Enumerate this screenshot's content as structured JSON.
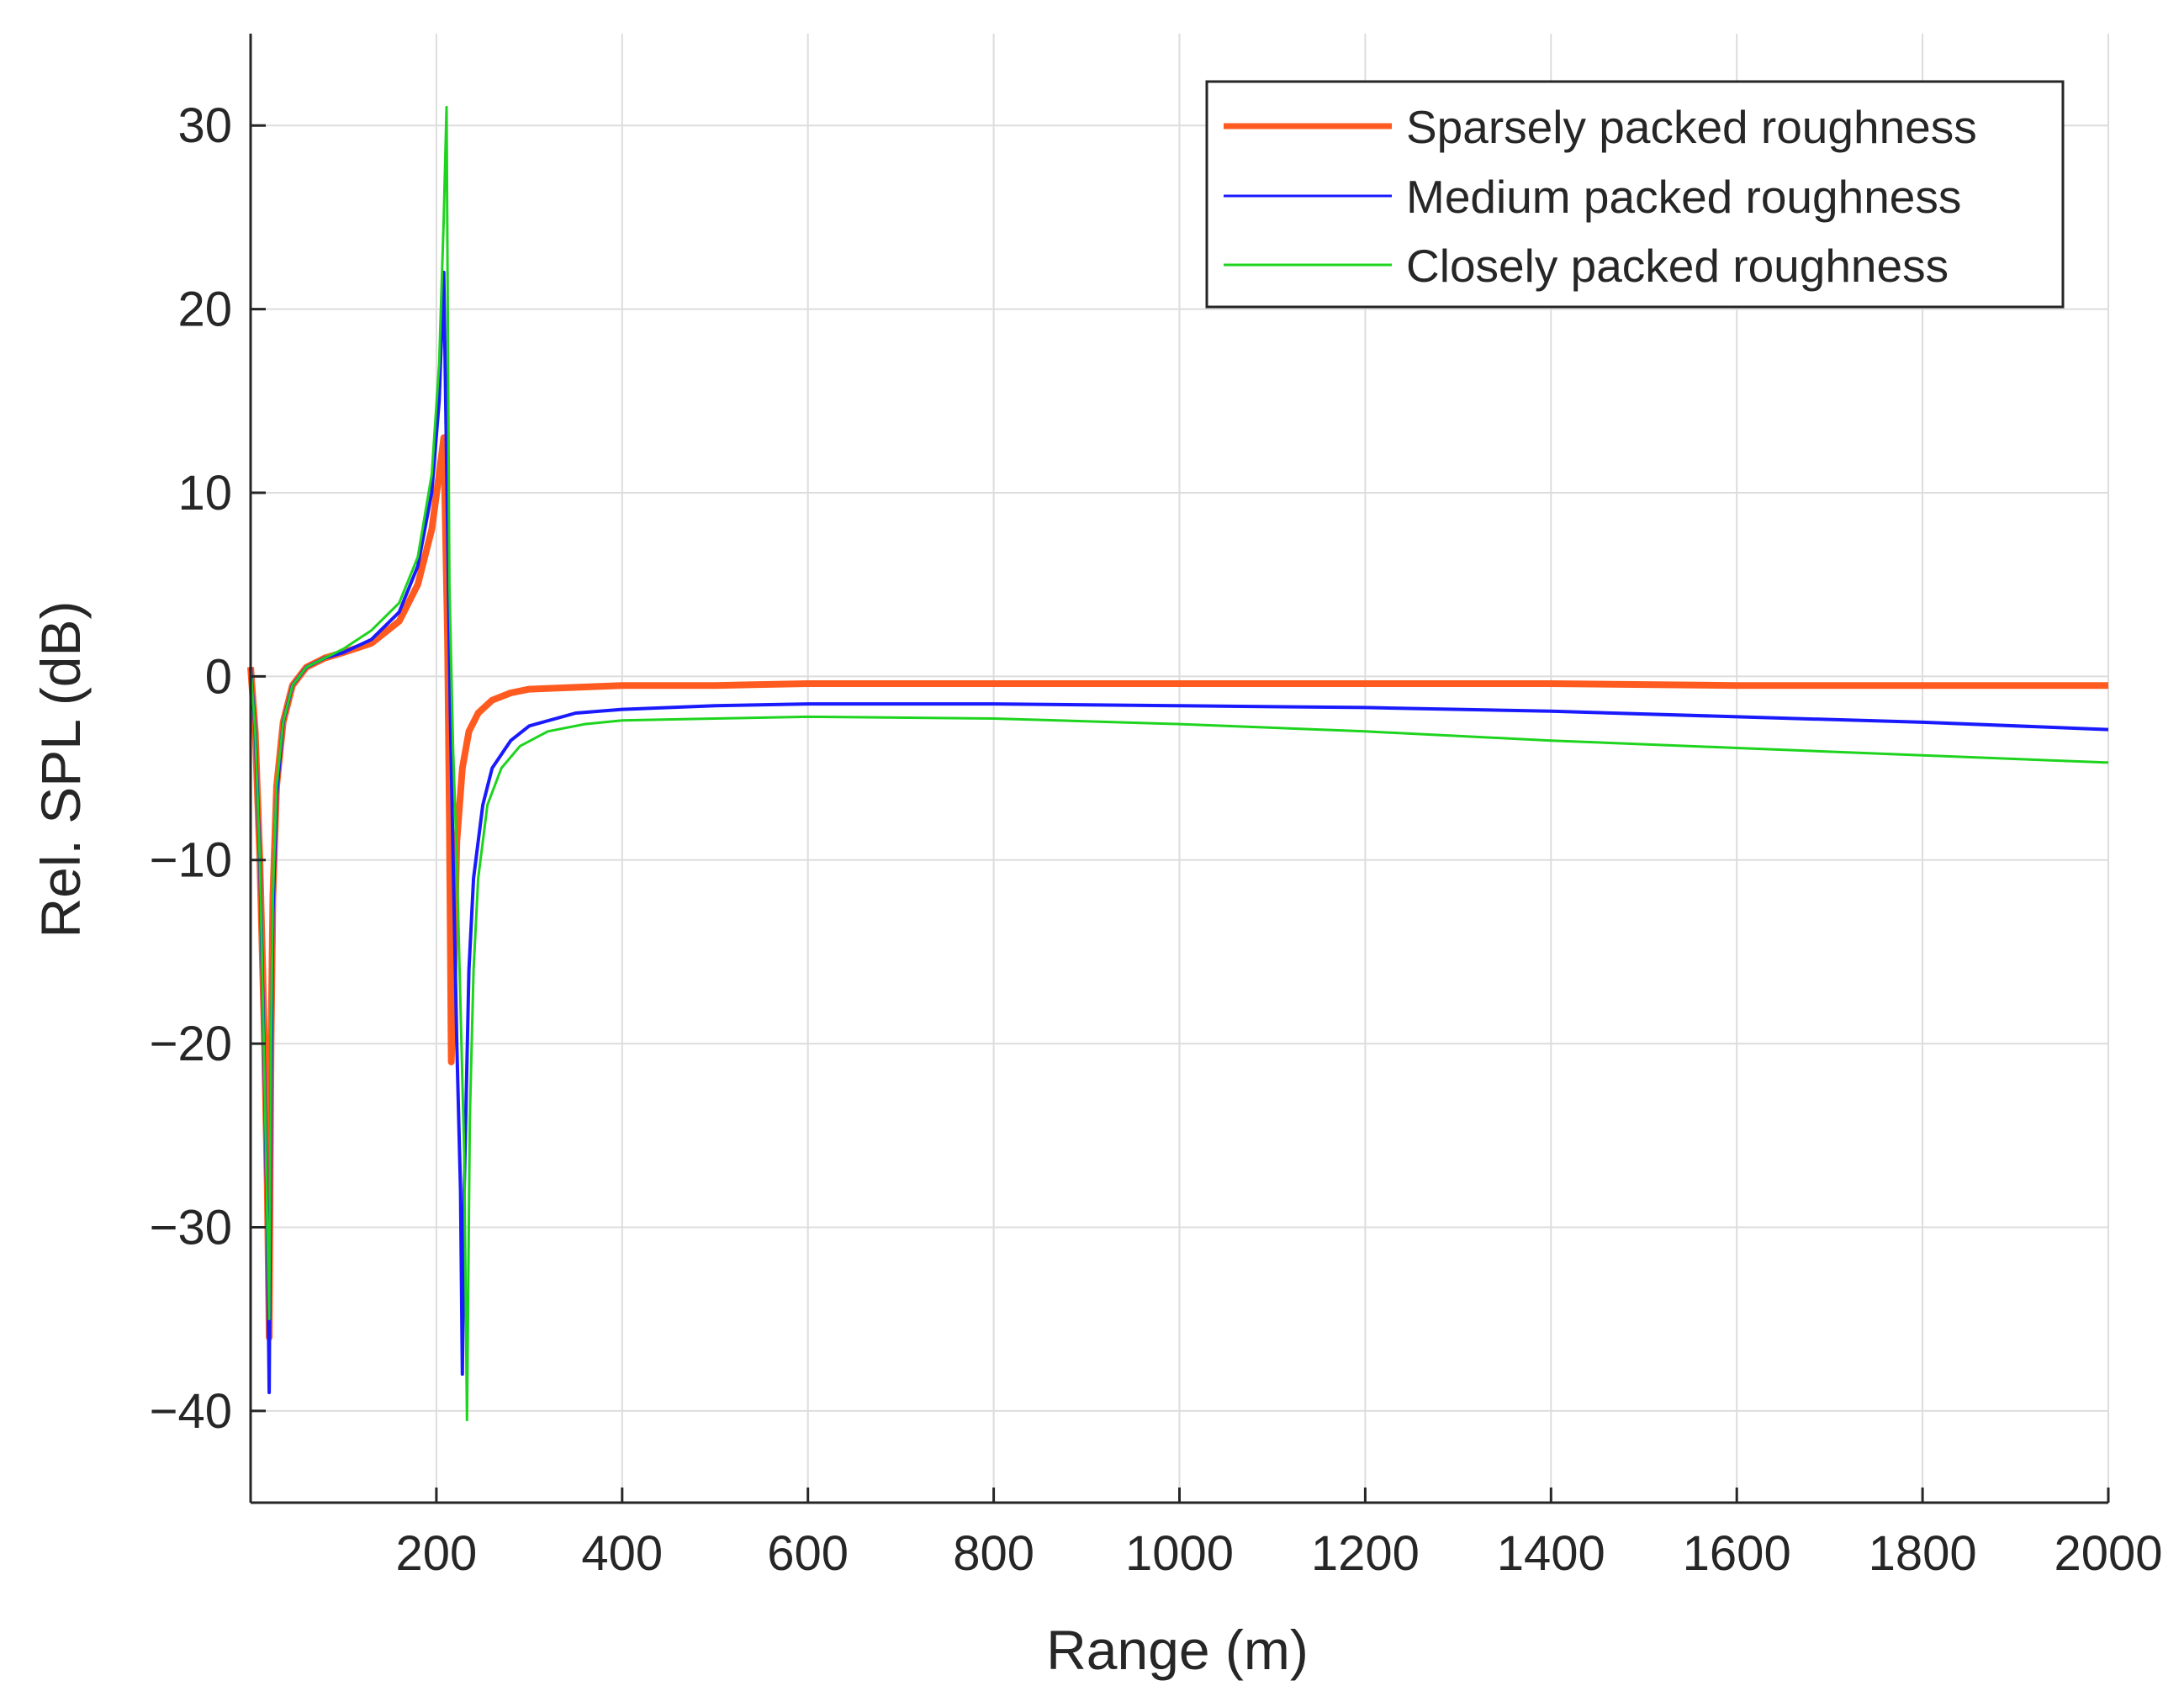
{
  "chart_data": {
    "type": "line",
    "title": "",
    "xlabel": "Range (m)",
    "ylabel": "Rel. SPL (dB)",
    "xlim": [
      0,
      2000
    ],
    "ylim": [
      -45,
      35
    ],
    "xticks": [
      200,
      400,
      600,
      800,
      1000,
      1200,
      1400,
      1600,
      1800,
      2000
    ],
    "xtick_labels": [
      "200",
      "400",
      "600",
      "800",
      "1000",
      "1200",
      "1400",
      "1600",
      "1800",
      "2000"
    ],
    "yticks": [
      -40,
      -30,
      -20,
      -10,
      0,
      10,
      20,
      30
    ],
    "ytick_labels": [
      "−40",
      "−30",
      "−20",
      "−10",
      "0",
      "10",
      "20",
      "30"
    ],
    "grid": true,
    "legend_position": "top-right",
    "series": [
      {
        "name": "Sparsely packed roughness",
        "color": "#ff5a1f",
        "x": [
          0,
          5,
          10,
          15,
          18,
          20,
          22,
          24,
          28,
          35,
          45,
          60,
          80,
          100,
          130,
          160,
          180,
          195,
          203,
          208,
          212,
          214,
          216,
          218,
          222,
          228,
          235,
          245,
          260,
          280,
          300,
          350,
          400,
          500,
          600,
          800,
          1000,
          1200,
          1400,
          1600,
          1800,
          2000
        ],
        "y": [
          0.5,
          -3,
          -10,
          -20,
          -28,
          -36,
          -20,
          -12,
          -6,
          -2.5,
          -0.5,
          0.5,
          1,
          1.3,
          1.8,
          3,
          5,
          8,
          11,
          13,
          2,
          -8,
          -21,
          -18,
          -9,
          -5,
          -3,
          -2,
          -1.3,
          -0.9,
          -0.7,
          -0.6,
          -0.5,
          -0.5,
          -0.4,
          -0.4,
          -0.4,
          -0.4,
          -0.4,
          -0.5,
          -0.5,
          -0.5
        ]
      },
      {
        "name": "Medium packed roughness",
        "color": "#1a1aff",
        "x": [
          0,
          5,
          10,
          15,
          18,
          20,
          22,
          24,
          28,
          35,
          45,
          60,
          80,
          100,
          130,
          160,
          180,
          195,
          203,
          208,
          212,
          215,
          218,
          222,
          226,
          228,
          230,
          235,
          240,
          250,
          260,
          280,
          300,
          350,
          400,
          500,
          600,
          800,
          1000,
          1200,
          1400,
          1600,
          1800,
          2000
        ],
        "y": [
          0.5,
          -3,
          -10,
          -22,
          -30,
          -39,
          -22,
          -13,
          -6.5,
          -2.5,
          -0.5,
          0.5,
          1,
          1.3,
          2,
          3.5,
          6,
          10,
          15,
          22,
          8,
          -2,
          -10,
          -20,
          -28,
          -38,
          -28,
          -16,
          -11,
          -7,
          -5,
          -3.5,
          -2.7,
          -2,
          -1.8,
          -1.6,
          -1.5,
          -1.5,
          -1.6,
          -1.7,
          -1.9,
          -2.2,
          -2.5,
          -2.9
        ]
      },
      {
        "name": "Closely packed roughness",
        "color": "#1ed41e",
        "x": [
          0,
          5,
          10,
          15,
          18,
          20,
          22,
          24,
          28,
          35,
          45,
          60,
          80,
          100,
          130,
          160,
          180,
          195,
          203,
          208,
          211,
          214,
          218,
          222,
          226,
          230,
          233,
          236,
          240,
          245,
          255,
          270,
          290,
          320,
          360,
          400,
          500,
          600,
          800,
          1000,
          1200,
          1400,
          1600,
          1800,
          2000
        ],
        "y": [
          0.5,
          -3,
          -10,
          -22,
          -30,
          -35,
          -20,
          -12,
          -6,
          -2.5,
          -0.5,
          0.5,
          1,
          1.5,
          2.5,
          4,
          6.5,
          11,
          17,
          25,
          31,
          5,
          -4,
          -10,
          -18,
          -26,
          -40.5,
          -24,
          -16,
          -11,
          -7,
          -5,
          -3.8,
          -3,
          -2.6,
          -2.4,
          -2.3,
          -2.2,
          -2.3,
          -2.6,
          -3,
          -3.5,
          -3.9,
          -4.3,
          -4.7
        ]
      }
    ]
  }
}
